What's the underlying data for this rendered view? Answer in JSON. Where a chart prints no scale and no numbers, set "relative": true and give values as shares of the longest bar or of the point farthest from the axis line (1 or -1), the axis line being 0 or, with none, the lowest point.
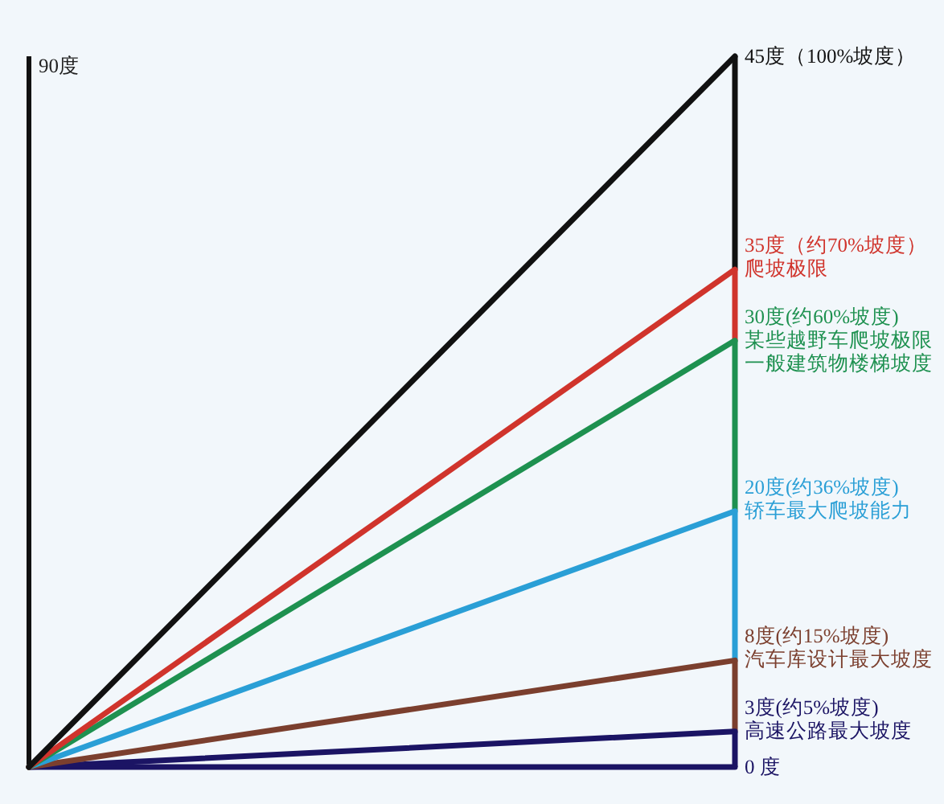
{
  "chart_data": {
    "type": "line",
    "relative": true,
    "categories": [
      null,
      null
    ],
    "annotations": [
      "90度"
    ],
    "series": [
      {
        "name": "45度（100%坡度）",
        "color": "#111111",
        "values": [
          0,
          1
        ]
      },
      {
        "name": "35度（约70%坡度）爬坡极限",
        "color": "#d0342c",
        "values": [
          0,
          0.7
        ]
      },
      {
        "name": "30度(约60%坡度)某些越野车爬坡极限一般建筑物楼梯坡度",
        "color": "#1e9150",
        "values": [
          0,
          0.6
        ]
      },
      {
        "name": "20度(约36%坡度)轿车最大爬坡能力",
        "color": "#2a9fd6",
        "values": [
          0,
          0.36
        ]
      },
      {
        "name": "8度(约15%坡度)汽车库设计最大坡度",
        "color": "#7b3f2e",
        "values": [
          0,
          0.15
        ]
      },
      {
        "name": "3度(约5%坡度)高速公路最大坡度",
        "color": "#1b1464",
        "values": [
          0,
          0.05
        ]
      },
      {
        "name": "0 度",
        "color": "#1b1464",
        "values": [
          0,
          0
        ]
      }
    ]
  }
}
